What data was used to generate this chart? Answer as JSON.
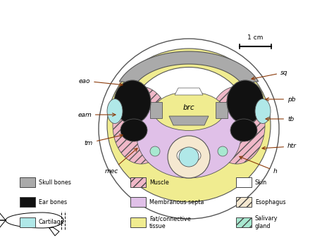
{
  "colors": {
    "skull_bones": "#aaaaaa",
    "ear_bones": "#111111",
    "cartilage": "#b0e8e8",
    "muscle_pink": "#f0b8c8",
    "membranous_septa": "#e0c0e8",
    "fat_connective": "#f0ec90",
    "skin": "#ffffff",
    "esophagus": "#f5e8d0",
    "salivary_gland": "#a8e8d0",
    "outline": "#555555",
    "arrow": "#8B3A0A",
    "bg": "#ffffff"
  },
  "legend_items": [
    {
      "label": "Skull bones",
      "color": "#aaaaaa",
      "hatch": "",
      "col": 0,
      "row": 0
    },
    {
      "label": "Ear bones",
      "color": "#111111",
      "hatch": "",
      "col": 0,
      "row": 1
    },
    {
      "label": "Cartilage",
      "color": "#b0e8e8",
      "hatch": "",
      "col": 0,
      "row": 2
    },
    {
      "label": "Muscle",
      "color": "#f0b8c8",
      "hatch": "///",
      "col": 1,
      "row": 0
    },
    {
      "label": "Membranous septa",
      "color": "#e0c0e8",
      "hatch": "",
      "col": 1,
      "row": 1
    },
    {
      "label": "Fat/connective\ntissue",
      "color": "#f0ec90",
      "hatch": "",
      "col": 1,
      "row": 2
    },
    {
      "label": "Skin",
      "color": "#ffffff",
      "hatch": "",
      "col": 2,
      "row": 0
    },
    {
      "label": "Esophagus",
      "color": "#f5e8d0",
      "hatch": "///",
      "col": 2,
      "row": 1
    },
    {
      "label": "Salivary\ngland",
      "color": "#a8e8d0",
      "hatch": "///",
      "col": 2,
      "row": 2
    }
  ]
}
